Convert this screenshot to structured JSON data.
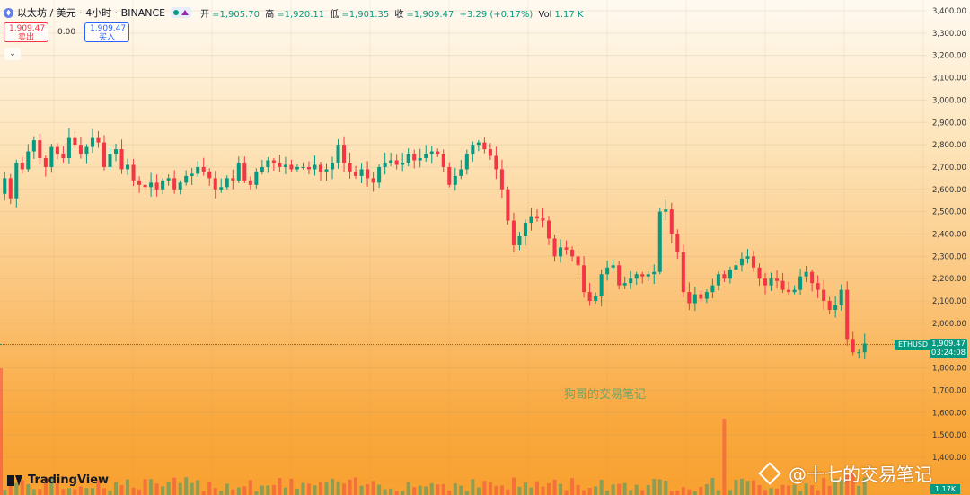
{
  "header": {
    "symbol": "以太坊 / 美元 · 4小时 · BINANCE",
    "ohlc": {
      "open_label": "开",
      "open": "=1,905.70",
      "high_label": "高",
      "high": "=1,920.11",
      "low_label": "低",
      "low": "=1,901.35",
      "close_label": "收",
      "close": "=1,909.47",
      "change": "+3.29 (+0.17%)",
      "vol_label": "Vol",
      "vol": "1.17 K"
    }
  },
  "trade": {
    "sell_price": "1,909.47",
    "sell_label": "卖出",
    "spread": "0.00",
    "buy_price": "1,909.47",
    "buy_label": "买入"
  },
  "price_tag": {
    "symbol": "ETHUSD",
    "price": "1,909.47",
    "countdown": "03:24:08"
  },
  "volume_tag": "1.17K",
  "watermark": "狗哥的交易笔记",
  "branding": "TradingView",
  "social": "@十七的交易笔记",
  "colors": {
    "up": "#089981",
    "down": "#f23645",
    "accent": "#2962ff"
  },
  "icons": {
    "collapse": "chevron-down-icon",
    "symbol": "ethereum-icon"
  },
  "chart_data": {
    "type": "candlestick",
    "y_ticks": [
      "3,400.00",
      "3,300.00",
      "3,200.00",
      "3,100.00",
      "3,000.00",
      "2,900.00",
      "2,800.00",
      "2,700.00",
      "2,600.00",
      "2,500.00",
      "2,400.00",
      "2,300.00",
      "2,200.00",
      "2,100.00",
      "2,000.00",
      "1,900.00",
      "1,800.00",
      "1,700.00",
      "1,600.00",
      "1,500.00",
      "1,400.00"
    ],
    "ylim": [
      1400,
      3400
    ],
    "current_price": 1909.47,
    "closes": [
      2650,
      2560,
      2720,
      2690,
      2770,
      2820,
      2740,
      2700,
      2790,
      2760,
      2740,
      2830,
      2800,
      2760,
      2790,
      2830,
      2810,
      2700,
      2760,
      2780,
      2690,
      2710,
      2640,
      2620,
      2610,
      2630,
      2600,
      2640,
      2650,
      2600,
      2630,
      2660,
      2670,
      2700,
      2680,
      2650,
      2600,
      2610,
      2650,
      2640,
      2720,
      2640,
      2620,
      2680,
      2700,
      2730,
      2720,
      2700,
      2710,
      2690,
      2700,
      2700,
      2690,
      2710,
      2680,
      2690,
      2720,
      2800,
      2720,
      2680,
      2660,
      2690,
      2650,
      2630,
      2700,
      2720,
      2730,
      2710,
      2720,
      2760,
      2730,
      2740,
      2760,
      2770,
      2760,
      2700,
      2620,
      2660,
      2690,
      2760,
      2800,
      2810,
      2780,
      2750,
      2690,
      2600,
      2460,
      2350,
      2390,
      2450,
      2480,
      2470,
      2460,
      2380,
      2300,
      2340,
      2330,
      2300,
      2260,
      2140,
      2100,
      2120,
      2220,
      2250,
      2260,
      2170,
      2180,
      2200,
      2220,
      2210,
      2220,
      2230,
      2500,
      2510,
      2400,
      2320,
      2140,
      2090,
      2130,
      2110,
      2140,
      2170,
      2220,
      2200,
      2240,
      2260,
      2290,
      2300,
      2250,
      2200,
      2170,
      2200,
      2190,
      2150,
      2140,
      2150,
      2210,
      2230,
      2180,
      2150,
      2100,
      2060,
      2080,
      2150,
      1930,
      1870,
      1870,
      1909
    ],
    "volume_peak_index": 123
  }
}
